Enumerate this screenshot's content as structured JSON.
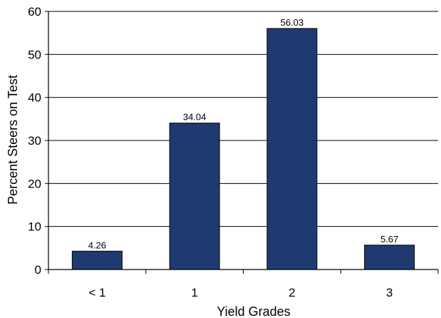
{
  "chart_data": {
    "type": "bar",
    "title": "",
    "xlabel": "Yield Grades",
    "ylabel": "Percent Steers on Test",
    "categories": [
      "< 1",
      "1",
      "2",
      "3"
    ],
    "values": [
      4.26,
      34.04,
      56.03,
      5.67
    ],
    "data_labels": [
      "4.26",
      "34.04",
      "56.03",
      "5.67"
    ],
    "ylim": [
      0,
      60
    ],
    "yticks": [
      0,
      10,
      20,
      30,
      40,
      50,
      60
    ],
    "grid": "horizontal",
    "legend": "none",
    "bar_color": "#1f3a70",
    "bar_edge_color": "#000000"
  }
}
